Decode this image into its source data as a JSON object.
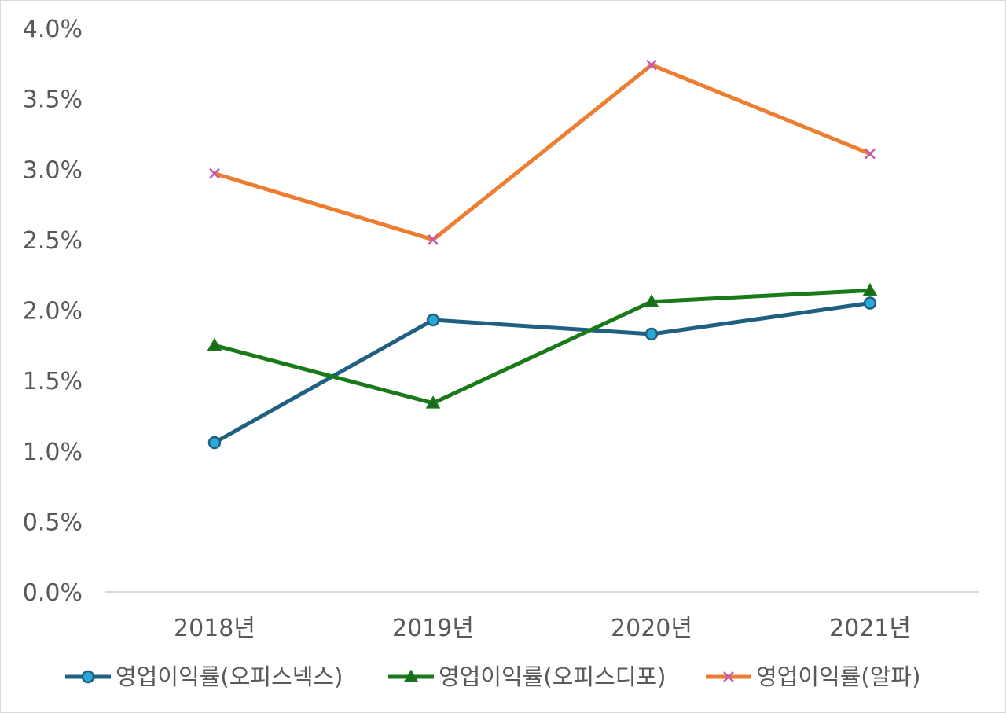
{
  "chart_data": {
    "type": "line",
    "title": "",
    "xlabel": "",
    "ylabel": "",
    "categories": [
      "2018년",
      "2019년",
      "2020년",
      "2021년"
    ],
    "ylim": [
      0,
      0.04
    ],
    "yticks": [
      "0.0%",
      "0.5%",
      "1.0%",
      "1.5%",
      "2.0%",
      "2.5%",
      "3.0%",
      "3.5%",
      "4.0%"
    ],
    "grid": false,
    "legend_position": "bottom",
    "series": [
      {
        "name": "영업이익률(오피스넥스)",
        "values": [
          0.0106,
          0.0193,
          0.0183,
          0.0205
        ],
        "color": "#1f5f80",
        "marker": "circle",
        "marker_fill": "#2aa8d8"
      },
      {
        "name": "영업이익률(오피스디포)",
        "values": [
          0.0175,
          0.0134,
          0.0206,
          0.0214
        ],
        "color": "#1a7a1a",
        "marker": "triangle",
        "marker_fill": "#1a6b1a"
      },
      {
        "name": "영업이익률(알파)",
        "values": [
          0.0297,
          0.025,
          0.0374,
          0.0311
        ],
        "color": "#ed7d31",
        "marker": "x",
        "marker_fill": "#c55ab0"
      }
    ]
  }
}
